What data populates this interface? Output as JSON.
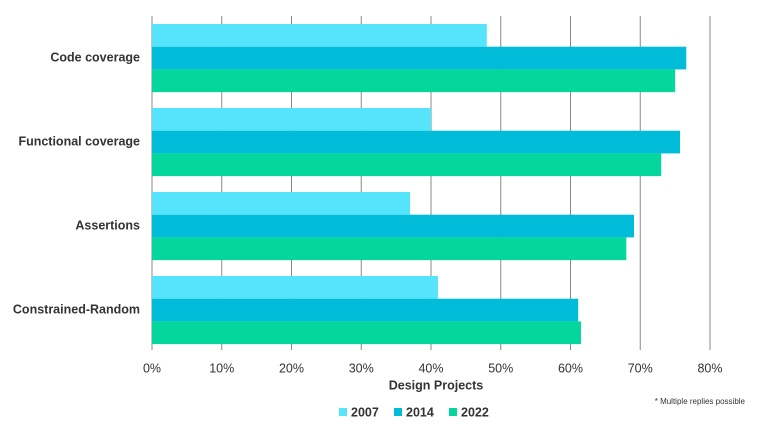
{
  "chart_data": {
    "type": "bar",
    "orientation": "horizontal",
    "xlabel": "Design Projects",
    "note": "* Multiple replies possible",
    "categories": [
      "Code coverage",
      "Functional coverage",
      "Assertions",
      "Constrained-Random"
    ],
    "series": [
      {
        "name": "2007",
        "color": "#55e4fb",
        "values": [
          48,
          40,
          37,
          41
        ]
      },
      {
        "name": "2014",
        "color": "#00bcd8",
        "values": [
          76.6,
          75.7,
          69.1,
          61.1
        ]
      },
      {
        "name": "2022",
        "color": "#04d69c",
        "values": [
          75,
          73,
          68,
          61.5
        ]
      }
    ],
    "xlim": [
      0,
      80
    ],
    "xticks": [
      {
        "value": 0,
        "label": "0%"
      },
      {
        "value": 10,
        "label": "10%"
      },
      {
        "value": 20,
        "label": "20%"
      },
      {
        "value": 30,
        "label": "30%"
      },
      {
        "value": 40,
        "label": "40%"
      },
      {
        "value": 50,
        "label": "50%"
      },
      {
        "value": 60,
        "label": "60%"
      },
      {
        "value": 70,
        "label": "70%"
      },
      {
        "value": 80,
        "label": "80%"
      }
    ],
    "grid": true
  }
}
